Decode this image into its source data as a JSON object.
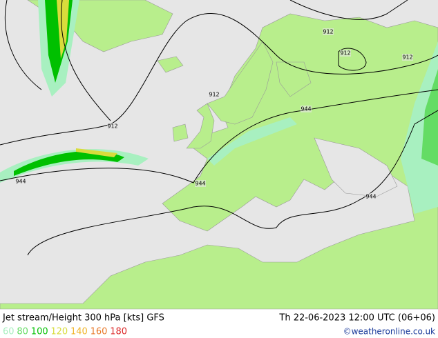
{
  "title": "Jet stream/Height 300 hPa [kts] GFS",
  "valid_time": "Th 22-06-2023 12:00 UTC (06+06)",
  "credit": "©weatheronline.co.uk",
  "legend": {
    "values": [
      60,
      80,
      100,
      120,
      140,
      160,
      180
    ],
    "colors": [
      "#a8f0c0",
      "#64dc64",
      "#00c000",
      "#d8dc3c",
      "#f0b428",
      "#e87828",
      "#dc2828"
    ]
  },
  "contour_labels": [
    "912",
    "912",
    "912",
    "912",
    "912",
    "944",
    "944",
    "944",
    "944"
  ]
}
